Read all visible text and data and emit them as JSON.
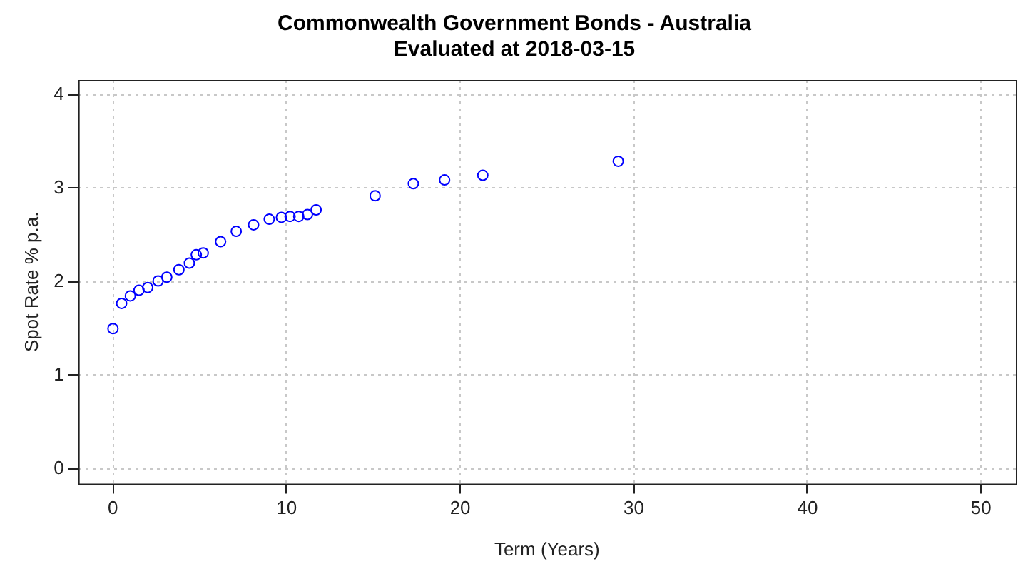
{
  "chart_data": {
    "type": "scatter",
    "title": "Commonwealth Government Bonds - Australia\nEvaluated at 2018-03-15",
    "xlabel": "Term (Years)",
    "ylabel": "Spot Rate % p.a.",
    "x": [
      0,
      0.5,
      1.0,
      1.5,
      2.0,
      2.6,
      3.1,
      3.8,
      4.4,
      4.8,
      5.2,
      6.2,
      7.1,
      8.1,
      9.0,
      9.7,
      10.2,
      10.7,
      11.2,
      11.7,
      15.1,
      17.3,
      19.1,
      21.3,
      29.1
    ],
    "series": [
      {
        "color": "#0000ff",
        "values": [
          1.5,
          1.77,
          1.85,
          1.91,
          1.94,
          2.01,
          2.05,
          2.13,
          2.2,
          2.29,
          2.31,
          2.43,
          2.54,
          2.61,
          2.67,
          2.69,
          2.7,
          2.7,
          2.72,
          2.77,
          2.92,
          3.05,
          3.09,
          3.14,
          3.29
        ]
      }
    ],
    "xlim": [
      -2,
      52
    ],
    "xticks": [
      0,
      10,
      20,
      30,
      40,
      50
    ],
    "ylim": [
      -0.16,
      4.16
    ],
    "yticks": [
      0,
      1,
      2,
      3,
      4
    ],
    "grid": true,
    "marker": "circle",
    "legend": false
  }
}
